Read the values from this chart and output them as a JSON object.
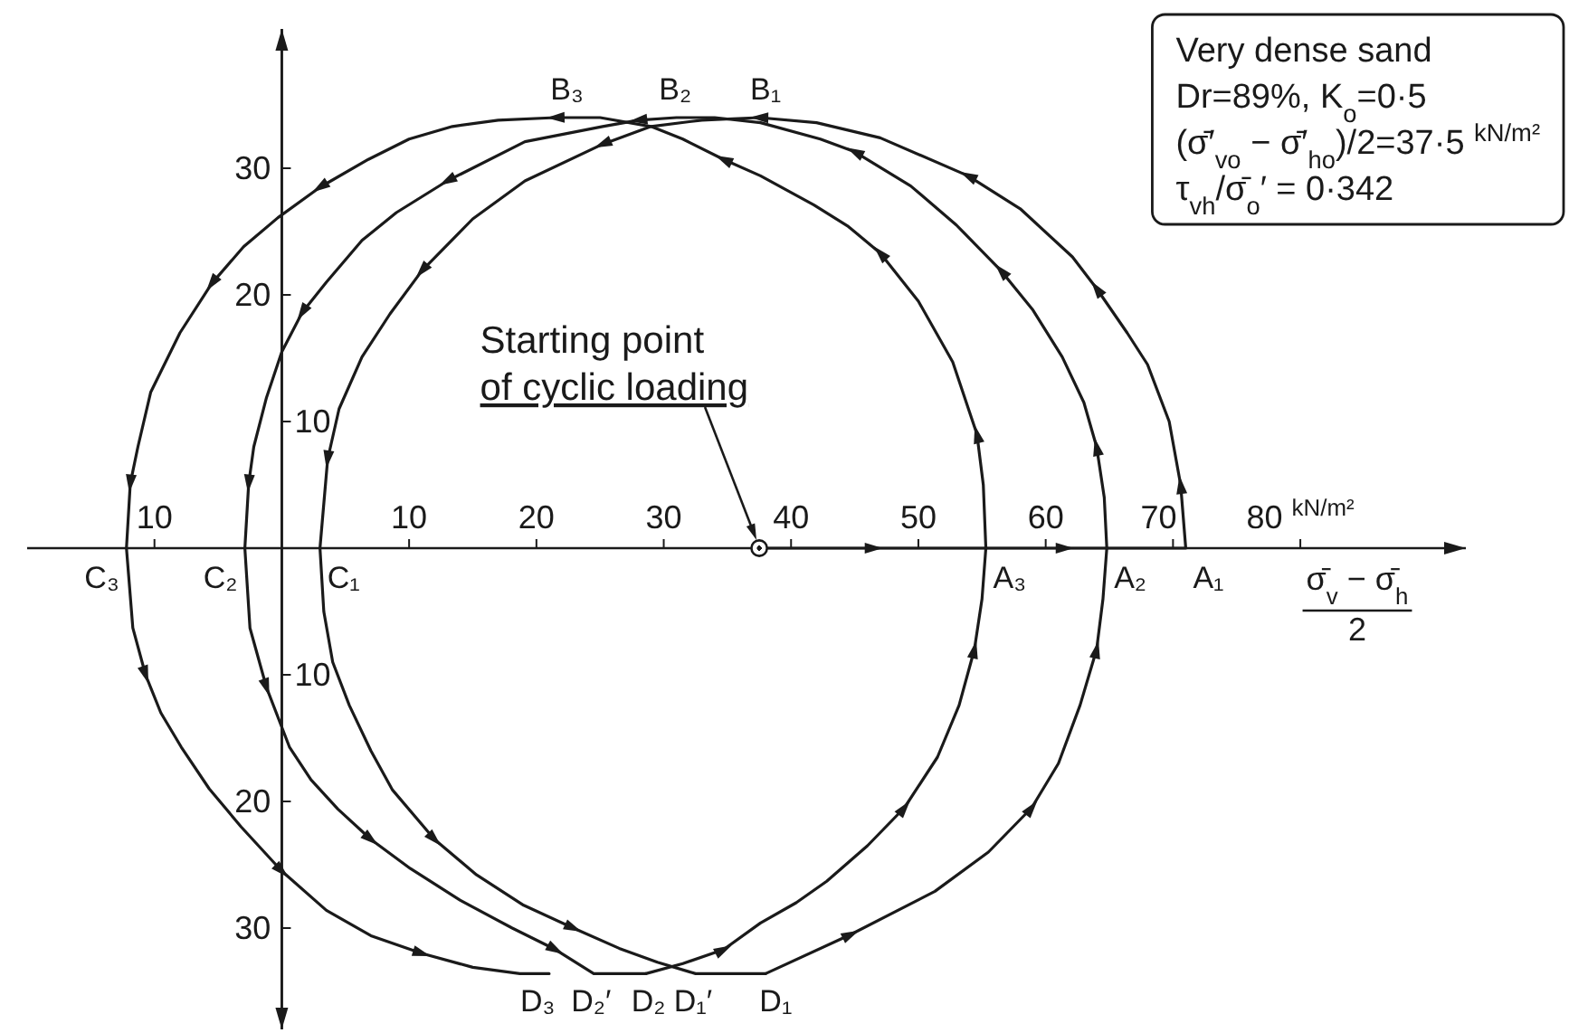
{
  "chart_data": {
    "type": "line",
    "xlabel": "σ̄$_{v}$ − σ̄$_{h}$\n2",
    "xlim": [
      -20,
      93
    ],
    "ylim": [
      -38,
      41
    ],
    "y2lim": [
      -38,
      41
    ],
    "xticks": [
      {
        "value": -10,
        "label": "10"
      },
      10,
      20,
      30,
      40,
      50,
      60,
      70,
      {
        "value": 80,
        "label": "80 $^{kN/m²}$"
      }
    ],
    "yticks": [
      {
        "value": -30,
        "label": "30"
      },
      {
        "value": -20,
        "label": "20"
      },
      20,
      30
    ],
    "y2ticks": [
      {
        "value": -10,
        "label": "10"
      },
      10
    ],
    "series": [
      {
        "color": "#1a1a1a",
        "x": [
          37.5,
          46.5,
          61.5,
          68,
          71,
          70.6,
          69.7,
          68,
          66.4,
          64,
          62.1,
          58,
          53.9,
          47,
          42,
          37.5,
          33,
          29,
          25.2,
          19.1,
          15,
          11,
          8.5,
          6.3,
          4.5,
          3.6,
          3,
          3.3,
          4,
          5.3,
          7,
          8.7,
          12,
          15.3,
          19,
          22.9,
          26.5,
          29.5,
          32.5,
          38
        ],
        "values": [
          0,
          0,
          0,
          0,
          0,
          5,
          10,
          14.5,
          17,
          20.5,
          23,
          26.8,
          29.4,
          32.4,
          33.6,
          34,
          33.8,
          33.3,
          31.9,
          29,
          26,
          21.9,
          18.5,
          15.1,
          11,
          7,
          0,
          -5,
          -9,
          -12.4,
          -16,
          -19.1,
          -23,
          -25.8,
          -28.2,
          -30,
          -31.6,
          -32.7,
          -33.6,
          -33.6
        ]
      },
      {
        "color": "#1a1a1a",
        "x": [
          38,
          44.7,
          51.3,
          55.5,
          58.9,
          61,
          62.7,
          64,
          64.5,
          64.8,
          64.6,
          64,
          63,
          61.3,
          59,
          56.5,
          53,
          49.4,
          45,
          42.3,
          37.6,
          34,
          31,
          28,
          25.2,
          19.1,
          13,
          9,
          6.3,
          3.5,
          1.6,
          0,
          -1.2,
          -2.2,
          -2.6,
          -2.9,
          -2.5,
          -1.2,
          0.6,
          2.3,
          4.4,
          7,
          10.1,
          14,
          18.1,
          21.5,
          24.5,
          28.6
        ],
        "values": [
          -33.6,
          -30.5,
          -27.1,
          -24,
          -20.5,
          -17,
          -12.4,
          -8,
          -4,
          0,
          4,
          8,
          11.5,
          15.1,
          18.8,
          21.9,
          25.5,
          28.6,
          31.3,
          32.3,
          33.6,
          34,
          34,
          33.8,
          33.3,
          32.1,
          29,
          26.5,
          24.3,
          21,
          18.6,
          15.5,
          11.9,
          8,
          5.1,
          0,
          -6.3,
          -11,
          -15.7,
          -18.3,
          -20.6,
          -23,
          -25.3,
          -27.8,
          -30,
          -31.7,
          -33.6,
          -33.6
        ]
      },
      {
        "color": "#1a1a1a",
        "x": [
          28.6,
          31.5,
          34.7,
          37.6,
          40.4,
          42.8,
          46,
          48.9,
          51.5,
          53.2,
          54.4,
          55,
          55.3,
          55.1,
          54.6,
          52.7,
          50,
          47,
          44.5,
          41.8,
          37.6,
          34.7,
          31.5,
          29,
          25,
          21.5,
          17,
          13.4,
          10,
          6.8,
          3,
          -0.3,
          -3,
          -5.5,
          -8,
          -10.3,
          -11.3,
          -11.9,
          -12.2,
          -11.7,
          -10.7,
          -9.5,
          -7.9,
          -5.7,
          -3.2,
          0,
          3.5,
          7,
          11,
          15,
          18.7,
          21
        ],
        "values": [
          -33.6,
          -32.8,
          -31.7,
          -29.6,
          -28,
          -26.3,
          -23.5,
          -20.5,
          -16.5,
          -12.4,
          -8,
          -4,
          0,
          5,
          9,
          14.7,
          19.5,
          23.3,
          25.4,
          27.1,
          29.4,
          30.7,
          32.3,
          33.3,
          34,
          34,
          33.8,
          33.3,
          32.3,
          30.7,
          28.5,
          26.1,
          23.8,
          20.9,
          17,
          12.3,
          8,
          5.1,
          0,
          -6.3,
          -10,
          -13,
          -15.7,
          -19,
          -22,
          -25.5,
          -28.6,
          -30.6,
          -32,
          -33.1,
          -33.6,
          -33.6
        ]
      },
      {
        "type": "scatter",
        "color": "#1a1a1a",
        "marker": "circle",
        "x": [
          37.5
        ],
        "values": [
          0
        ]
      }
    ],
    "annotations": [
      "Very dense sand",
      "Dr=89%, K$_{o}$=0·5",
      "(σ̄′$_{vo}$ − σ̄′$_{ho}$)/2=37·5 $^{kN/m²}$",
      "τ$_{vh}$/σ̄$_{o}$′ = 0·342",
      {
        "text": "Starting point\nof cyclic loading",
        "x": 37.5,
        "y": 0
      },
      {
        "text": "A₁",
        "x": 71,
        "y": 0
      },
      {
        "text": "B₁",
        "x": 38,
        "y": 34
      },
      {
        "text": "C₁",
        "x": 3,
        "y": 0
      },
      {
        "text": "D₁",
        "x": 38.8,
        "y": -33.6
      },
      {
        "text": "D₁′",
        "x": 32.3,
        "y": -33.6
      },
      {
        "text": "A₂",
        "x": 64.8,
        "y": 0
      },
      {
        "text": "B₂",
        "x": 30.9,
        "y": 34
      },
      {
        "text": "C₂",
        "x": -2.9,
        "y": 0
      },
      {
        "text": "D₂",
        "x": 28.8,
        "y": -33.6
      },
      {
        "text": "D₂′",
        "x": 24.3,
        "y": -33.6
      },
      {
        "text": "A₃",
        "x": 55.3,
        "y": 0
      },
      {
        "text": "B₃",
        "x": 22.4,
        "y": 34
      },
      {
        "text": "C₃",
        "x": -12.2,
        "y": 0
      },
      {
        "text": "D₃",
        "x": 20.1,
        "y": -33.6
      }
    ]
  }
}
